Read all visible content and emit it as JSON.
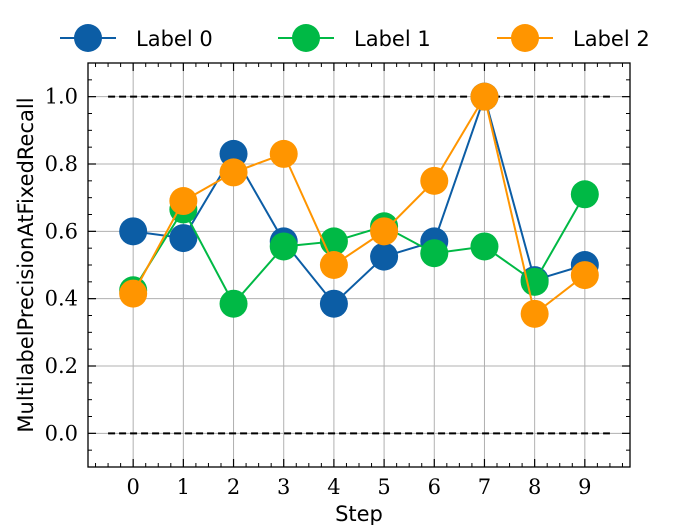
{
  "chart_data": {
    "type": "line",
    "xlabel": "Step",
    "ylabel": "MultilabelPrecisionAtFixedRecall",
    "x": [
      0,
      1,
      2,
      3,
      4,
      5,
      6,
      7,
      8,
      9
    ],
    "xlim": [
      -0.9,
      9.9
    ],
    "ylim": [
      -0.1,
      1.1
    ],
    "xticks": [
      0,
      1,
      2,
      3,
      4,
      5,
      6,
      7,
      8,
      9
    ],
    "yticks": [
      0.0,
      0.2,
      0.4,
      0.6,
      0.8,
      1.0
    ],
    "ytick_labels": [
      "0.0",
      "0.2",
      "0.4",
      "0.6",
      "0.8",
      "1.0"
    ],
    "grid": true,
    "legend_position": "top, above plot",
    "reference_lines": [
      0.0,
      1.0
    ],
    "series": [
      {
        "name": "Label 0",
        "color": "#0C5DA5",
        "values": [
          0.6,
          0.58,
          0.83,
          0.57,
          0.385,
          0.525,
          0.57,
          1.0,
          0.455,
          0.5
        ]
      },
      {
        "name": "Label 1",
        "color": "#00B945",
        "values": [
          0.425,
          0.665,
          0.385,
          0.555,
          0.57,
          0.615,
          0.535,
          0.555,
          0.45,
          0.71
        ]
      },
      {
        "name": "Label 2",
        "color": "#FF9500",
        "values": [
          0.415,
          0.69,
          0.775,
          0.83,
          0.5,
          0.6,
          0.75,
          1.0,
          0.355,
          0.47
        ]
      }
    ]
  }
}
